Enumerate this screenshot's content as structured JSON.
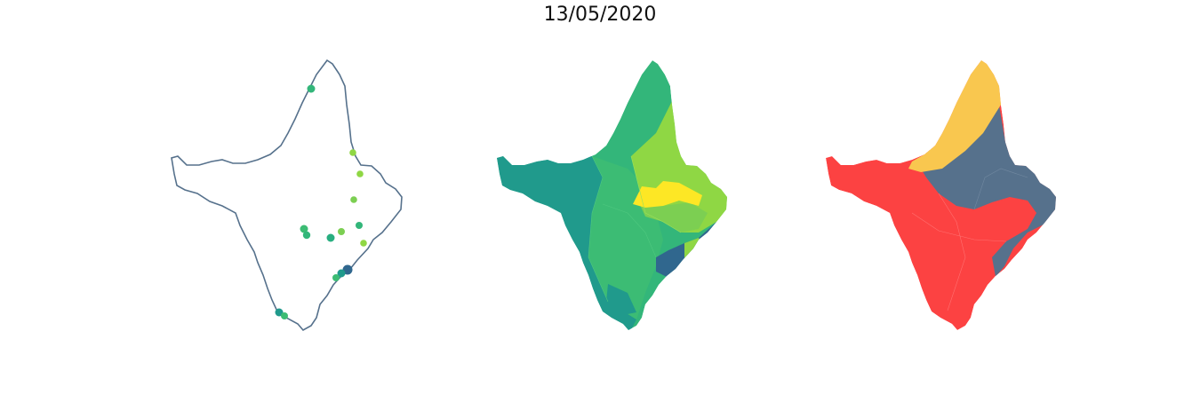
{
  "title": "13/05/2020",
  "colors": {
    "outline": "#56718c",
    "teal": "#209a8c",
    "green": "#33b67a",
    "green2": "#3cbc74",
    "lime": "#8fd744",
    "lime2": "#7ccf52",
    "yellow": "#fde725",
    "navy": "#30678e",
    "red": "#fc4242",
    "slate": "#56718c",
    "gold": "#f9c74f"
  },
  "maps": [
    {
      "name": "points-map"
    },
    {
      "name": "choropleth-map"
    },
    {
      "name": "category-map"
    }
  ]
}
